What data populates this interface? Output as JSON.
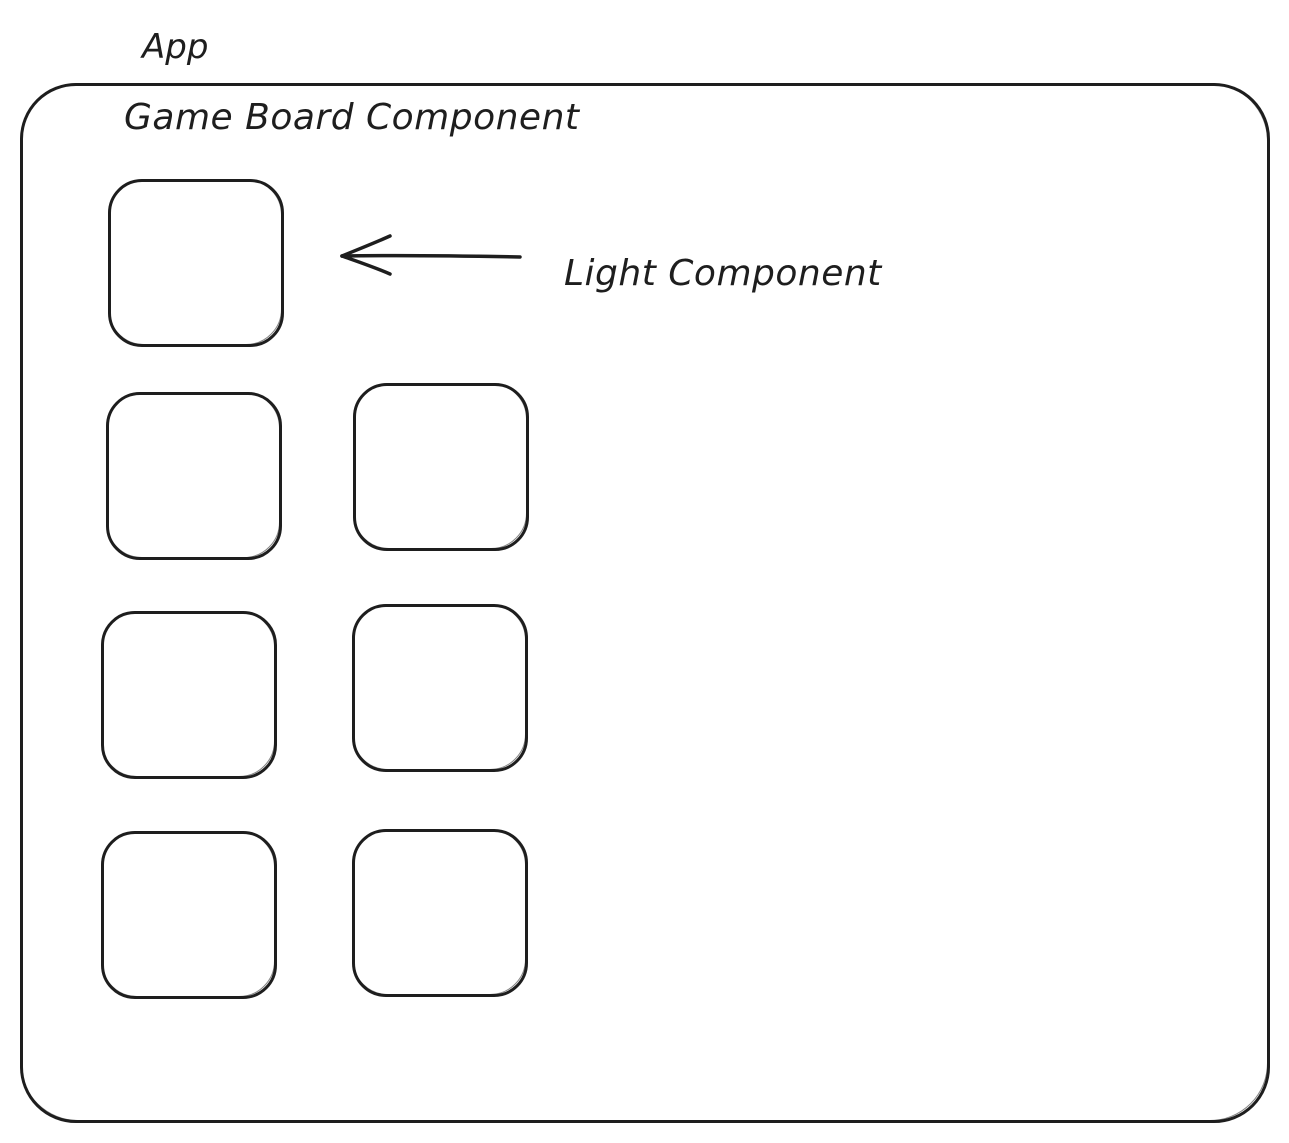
{
  "diagram": {
    "app_label": "App",
    "board_label": "Game Board Component",
    "light_label": "Light Component",
    "stroke_color": "#1e1e1e",
    "background_color": "#ffffff",
    "light_count": 7,
    "arrow_icon": "left-arrow-icon"
  }
}
